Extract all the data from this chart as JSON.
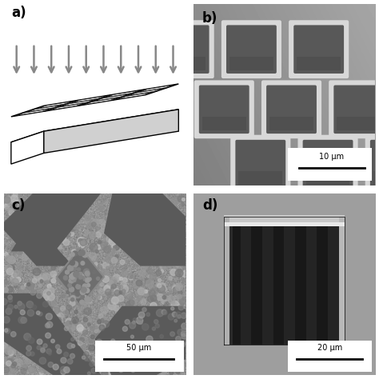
{
  "figure_size": [
    4.74,
    4.74
  ],
  "dpi": 100,
  "bg_color": "#ffffff",
  "panel_labels": [
    "a)",
    "b)",
    "c)",
    "d)"
  ],
  "panel_label_fontsize": 12,
  "scale_bars": {
    "b": "10 μm",
    "c": "50 μm",
    "d": "20 μm"
  },
  "arrow_color": "#888888",
  "schematic_gray": "#777777",
  "panel_b_bg": "#aaaaaa",
  "panel_b_groove": "#888888",
  "panel_b_bright": "#e8e8e8",
  "panel_b_hole": "#606060",
  "panel_c_bg": "#909090",
  "panel_c_groove": "#6a6a6a",
  "panel_c_bump_colors": [
    "#808080",
    "#787878",
    "#989898",
    "#a0a0a0",
    "#707070"
  ],
  "panel_d_bg": "#aaaaaa",
  "panel_d_rim": "#b8b8b8",
  "panel_d_top_bright": "#d8d8d8",
  "panel_d_hole_dark": "#1a1a1a",
  "panel_d_stripe_dark": "#222222",
  "panel_d_stripe_light": "#2e2e2e"
}
